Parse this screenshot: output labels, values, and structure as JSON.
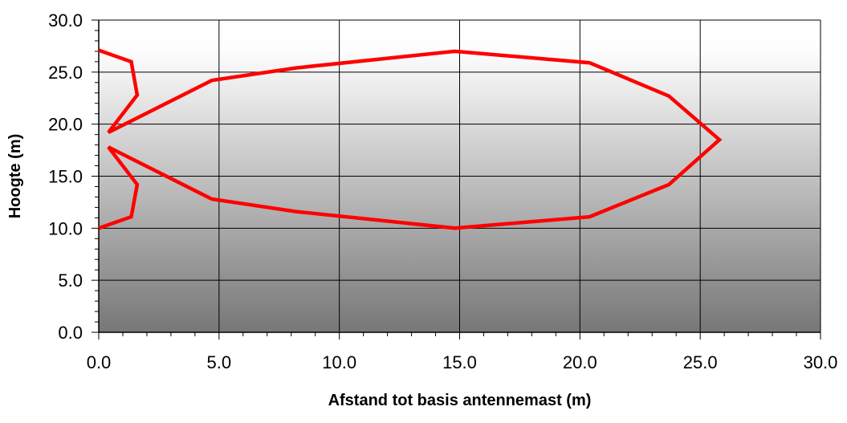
{
  "chart_data": {
    "type": "line",
    "title": "",
    "xlabel": "Afstand tot basis antennemast (m)",
    "ylabel": "Hoogte (m)",
    "xlim": [
      0,
      30
    ],
    "ylim": [
      0,
      30
    ],
    "x_ticks": [
      "0.0",
      "5.0",
      "10.0",
      "15.0",
      "20.0",
      "25.0",
      "30.0"
    ],
    "y_ticks": [
      "0.0",
      "5.0",
      "10.0",
      "15.0",
      "20.0",
      "25.0",
      "30.0"
    ],
    "grid": true,
    "legend": "none",
    "background": "vertical gradient, light grey at top to dark grey at bottom",
    "series": [
      {
        "color": "#ff0000",
        "points": [
          [
            0.0,
            27.1
          ],
          [
            1.35,
            26.0
          ],
          [
            1.6,
            22.8
          ],
          [
            0.4,
            19.2
          ],
          [
            4.7,
            24.2
          ],
          [
            8.2,
            25.4
          ],
          [
            14.8,
            27.0
          ],
          [
            20.4,
            25.9
          ],
          [
            23.7,
            22.7
          ],
          [
            25.8,
            18.5
          ],
          [
            23.7,
            14.2
          ],
          [
            20.4,
            11.1
          ],
          [
            14.8,
            10.0
          ],
          [
            8.2,
            11.6
          ],
          [
            4.7,
            12.8
          ],
          [
            0.4,
            17.8
          ],
          [
            1.6,
            14.2
          ],
          [
            1.35,
            11.1
          ],
          [
            0.0,
            10.0
          ]
        ]
      }
    ]
  }
}
